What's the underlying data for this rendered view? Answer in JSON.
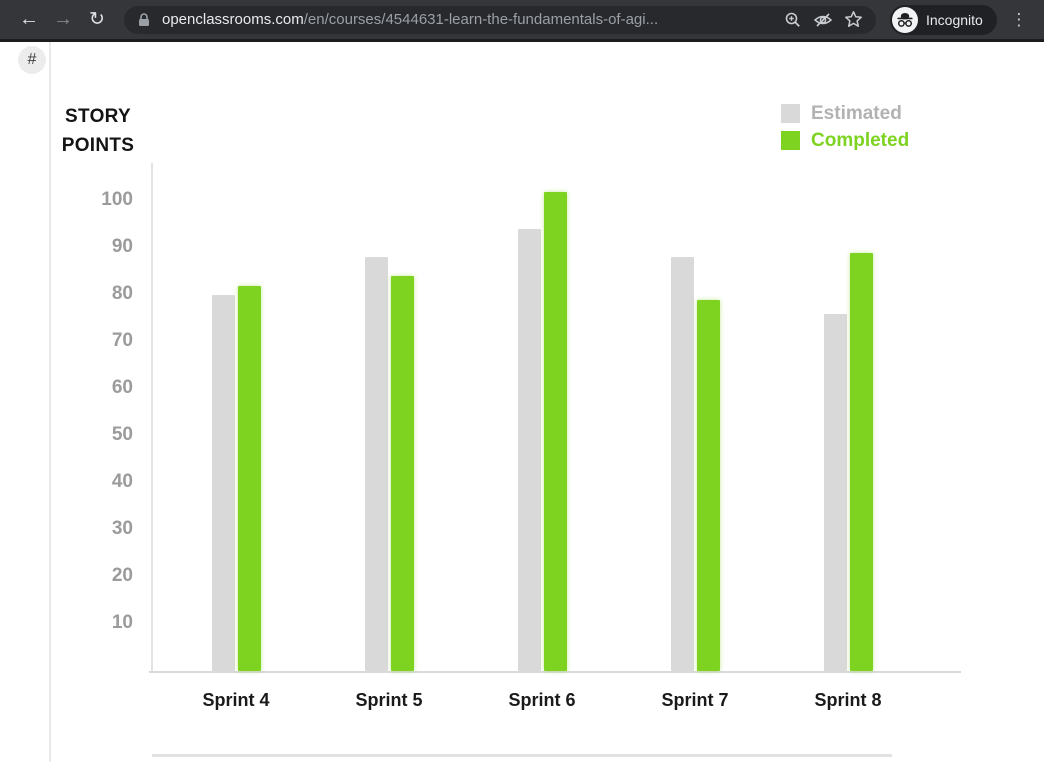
{
  "browser": {
    "back_tooltip": "Back",
    "forward_tooltip": "Forward",
    "reload_tooltip": "Reload",
    "url_domain": "openclassrooms.com",
    "url_path": "/en/courses/4544631-learn-the-fundamentals-of-agi...",
    "incognito_label": "Incognito"
  },
  "page": {
    "hash_button": "#",
    "title_line1": "STORY",
    "title_line2": "POINTS"
  },
  "chart_data": {
    "type": "bar",
    "title": "STORY POINTS",
    "categories": [
      "Sprint 4",
      "Sprint 5",
      "Sprint 6",
      "Sprint 7",
      "Sprint 8"
    ],
    "series": [
      {
        "name": "Estimated",
        "color": "#d9d9d9",
        "text_color": "#b2b2b2",
        "values": [
          80,
          88,
          94,
          88,
          76
        ]
      },
      {
        "name": "Completed",
        "color": "#7ed321",
        "text_color": "#7ed321",
        "values": [
          82,
          84,
          102,
          79,
          89
        ]
      }
    ],
    "xlabel": "",
    "ylabel": "STORY POINTS",
    "ylim": [
      0,
      110
    ],
    "yticks": [
      10,
      20,
      30,
      40,
      50,
      60,
      70,
      80,
      90,
      100
    ],
    "grid": false,
    "legend_position": "top-right"
  }
}
